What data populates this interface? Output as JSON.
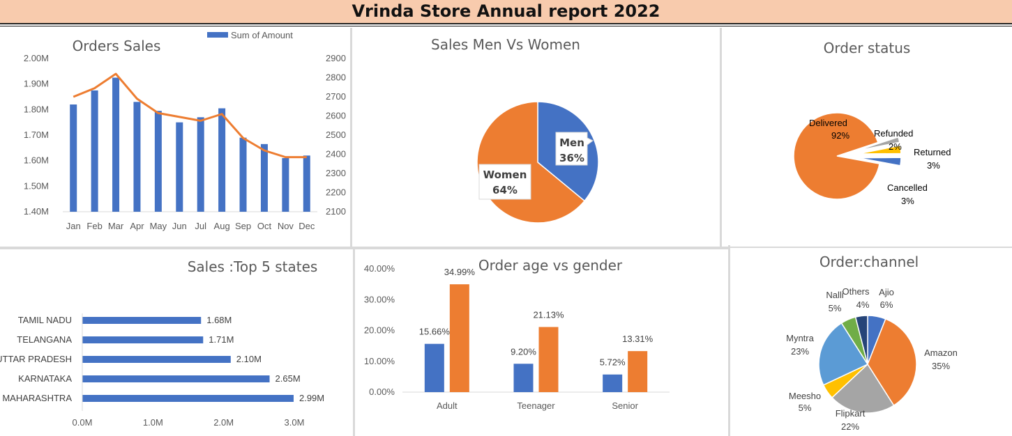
{
  "report": {
    "title": "Vrinda Store Annual report 2022"
  },
  "colors": {
    "blue": "#4472c4",
    "orange": "#ed7d31",
    "gray": "#a5a5a5",
    "yellow": "#ffc000",
    "lightblue": "#5b9bd5",
    "green": "#70ad47",
    "navy": "#264478"
  },
  "chart_data": [
    {
      "id": "orders-sales",
      "type": "bar",
      "title": "Orders Sales",
      "legend": "Sum of Amount",
      "categories": [
        "Jan",
        "Feb",
        "Mar",
        "Apr",
        "May",
        "Jun",
        "Jul",
        "Aug",
        "Sep",
        "Oct",
        "Nov",
        "Dec"
      ],
      "series": [
        {
          "name": "Sum of Amount",
          "values": [
            1.82,
            1.875,
            1.925,
            1.83,
            1.795,
            1.75,
            1.77,
            1.805,
            1.69,
            1.665,
            1.61,
            1.62
          ]
        },
        {
          "name": "",
          "type": "line",
          "axis": "right",
          "values": [
            2700,
            2745,
            2820,
            2690,
            2615,
            2595,
            2575,
            2610,
            2485,
            2420,
            2385,
            2385
          ]
        }
      ],
      "ylim": [
        1.4,
        2.0
      ],
      "yticks": [
        "1.40M",
        "1.50M",
        "1.60M",
        "1.70M",
        "1.80M",
        "1.90M",
        "2.00M"
      ],
      "y2lim": [
        2100,
        2900
      ],
      "y2ticks": [
        "2100",
        "2200",
        "2300",
        "2400",
        "2500",
        "2600",
        "2700",
        "2800",
        "2900"
      ]
    },
    {
      "id": "sales-men-women",
      "type": "pie",
      "title": "Sales Men Vs Women",
      "slices": [
        {
          "name": "Men",
          "value": 36,
          "label": "36%"
        },
        {
          "name": "Women",
          "value": 64,
          "label": "64%"
        }
      ]
    },
    {
      "id": "order-status",
      "type": "pie",
      "title": "Order status",
      "slices": [
        {
          "name": "Delivered",
          "value": 92,
          "label": "92%"
        },
        {
          "name": "Refunded",
          "value": 2,
          "label": "2%"
        },
        {
          "name": "Returned",
          "value": 3,
          "label": "3%"
        },
        {
          "name": "Cancelled",
          "value": 3,
          "label": "3%"
        }
      ]
    },
    {
      "id": "top5-states",
      "type": "bar",
      "orientation": "horizontal",
      "title": "Sales :Top 5 states",
      "categories": [
        "TAMIL NADU",
        "TELANGANA",
        "UTTAR PRADESH",
        "KARNATAKA",
        "MAHARASHTRA"
      ],
      "values": [
        1.68,
        1.71,
        2.1,
        2.65,
        2.99
      ],
      "value_labels": [
        "1.68M",
        "1.71M",
        "2.10M",
        "2.65M",
        "2.99M"
      ],
      "xlim": [
        0,
        3.0
      ],
      "xticks": [
        "0.0M",
        "1.0M",
        "2.0M",
        "3.0M"
      ]
    },
    {
      "id": "order-age-gender",
      "type": "bar",
      "title": "Order age vs gender",
      "categories": [
        "Adult",
        "Teenager",
        "Senior"
      ],
      "series": [
        {
          "name": "",
          "values": [
            15.66,
            9.2,
            5.72
          ],
          "labels": [
            "15.66%",
            "9.20%",
            "5.72%"
          ]
        },
        {
          "name": "",
          "values": [
            34.99,
            21.13,
            13.31
          ],
          "labels": [
            "34.99%",
            "21.13%",
            "13.31%"
          ]
        }
      ],
      "ylim": [
        0,
        40
      ],
      "yticks": [
        "0.00%",
        "10.00%",
        "20.00%",
        "30.00%",
        "40.00%"
      ]
    },
    {
      "id": "order-channel",
      "type": "pie",
      "title": "Order:channel",
      "slices": [
        {
          "name": "Ajio",
          "value": 6,
          "label": "6%"
        },
        {
          "name": "Amazon",
          "value": 35,
          "label": "35%"
        },
        {
          "name": "Flipkart",
          "value": 22,
          "label": "22%"
        },
        {
          "name": "Meesho",
          "value": 5,
          "label": "5%"
        },
        {
          "name": "Myntra",
          "value": 23,
          "label": "23%"
        },
        {
          "name": "Nalli",
          "value": 5,
          "label": "5%"
        },
        {
          "name": "Others",
          "value": 4,
          "label": "4%"
        }
      ]
    }
  ]
}
